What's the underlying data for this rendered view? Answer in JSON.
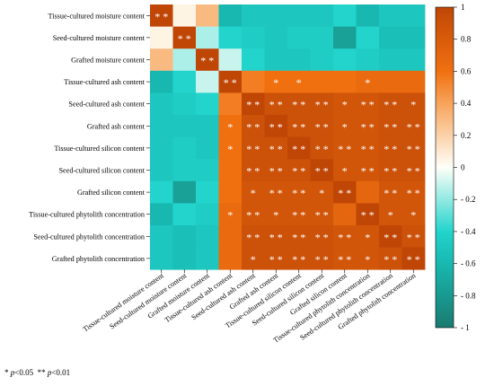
{
  "chart_data": {
    "type": "heatmap",
    "title": "",
    "labels": [
      "Tissue-cultured moisture content",
      "Seed-cultured moisture content",
      "Grafted moisture content",
      "Tissue-cultured ash content",
      "Seed-cultured ash content",
      "Grafted ash content",
      "Tissue-cultured silicon content",
      "Seed-cultured silicon content",
      "Grafted silicon content",
      "Tissue-cultured phytolith concentration",
      "Seed-cultured phytolith concentration",
      "Grafted phytolith concentration"
    ],
    "values": [
      [
        1.0,
        0.05,
        0.3,
        -0.6,
        -0.5,
        -0.5,
        -0.5,
        -0.5,
        -0.4,
        -0.6,
        -0.5,
        -0.5
      ],
      [
        0.05,
        1.0,
        -0.15,
        -0.4,
        -0.45,
        -0.5,
        -0.45,
        -0.45,
        -0.75,
        -0.4,
        -0.55,
        -0.55
      ],
      [
        0.3,
        -0.15,
        1.0,
        -0.1,
        -0.4,
        -0.5,
        -0.5,
        -0.45,
        -0.4,
        -0.45,
        -0.5,
        -0.5
      ],
      [
        -0.6,
        -0.4,
        -0.1,
        1.0,
        0.55,
        0.6,
        0.6,
        0.6,
        0.6,
        0.65,
        0.65,
        0.65
      ],
      [
        -0.5,
        -0.45,
        -0.4,
        0.55,
        1.0,
        0.9,
        0.9,
        0.9,
        0.85,
        0.85,
        0.9,
        0.9
      ],
      [
        -0.5,
        -0.5,
        -0.5,
        0.6,
        0.9,
        1.0,
        0.9,
        0.9,
        0.85,
        0.85,
        0.9,
        0.9
      ],
      [
        -0.5,
        -0.45,
        -0.5,
        0.6,
        0.9,
        0.9,
        1.0,
        0.9,
        0.85,
        0.85,
        0.9,
        0.9
      ],
      [
        -0.5,
        -0.45,
        -0.45,
        0.6,
        0.9,
        0.9,
        0.9,
        1.0,
        0.85,
        0.85,
        0.9,
        0.9
      ],
      [
        -0.4,
        -0.75,
        -0.4,
        0.6,
        0.85,
        0.85,
        0.85,
        0.85,
        1.0,
        0.7,
        0.85,
        0.85
      ],
      [
        -0.6,
        -0.4,
        -0.45,
        0.65,
        0.85,
        0.85,
        0.85,
        0.85,
        0.7,
        1.0,
        0.85,
        0.85
      ],
      [
        -0.5,
        -0.55,
        -0.5,
        0.65,
        0.9,
        0.9,
        0.9,
        0.9,
        0.85,
        0.85,
        1.0,
        0.9
      ],
      [
        -0.5,
        -0.55,
        -0.5,
        0.65,
        0.9,
        0.9,
        0.9,
        0.9,
        0.85,
        0.85,
        0.9,
        1.0
      ]
    ],
    "significance": [
      [
        "**",
        "",
        "",
        "",
        "",
        "",
        "",
        "",
        "",
        "",
        "",
        ""
      ],
      [
        "",
        "**",
        "",
        "",
        "",
        "",
        "",
        "",
        "",
        "",
        "",
        ""
      ],
      [
        "",
        "",
        "**",
        "",
        "",
        "",
        "",
        "",
        "",
        "",
        "",
        ""
      ],
      [
        "",
        "",
        "",
        "**",
        "",
        "*",
        "*",
        "",
        "",
        "*",
        "",
        ""
      ],
      [
        "",
        "",
        "",
        "",
        "**",
        "**",
        "**",
        "**",
        "*",
        "**",
        "**",
        "*"
      ],
      [
        "",
        "",
        "",
        "*",
        "**",
        "**",
        "**",
        "**",
        "*",
        "**",
        "**",
        "**"
      ],
      [
        "",
        "",
        "",
        "*",
        "**",
        "**",
        "**",
        "**",
        "**",
        "**",
        "**",
        "**"
      ],
      [
        "",
        "",
        "",
        "",
        "**",
        "**",
        "**",
        "**",
        "*",
        "**",
        "**",
        "**"
      ],
      [
        "",
        "",
        "",
        "",
        "*",
        "**",
        "**",
        "*",
        "**",
        "",
        "**",
        "**"
      ],
      [
        "",
        "",
        "",
        "*",
        "**",
        "*",
        "**",
        "**",
        "",
        "**",
        "*",
        "*"
      ],
      [
        "",
        "",
        "",
        "",
        "**",
        "**",
        "**",
        "**",
        "**",
        "*",
        "**",
        "**"
      ],
      [
        "",
        "",
        "",
        "",
        "*",
        "**",
        "**",
        "**",
        "**",
        "*",
        "**",
        "**"
      ]
    ],
    "colorbar": {
      "min": -1,
      "max": 1,
      "ticks": [
        1,
        0.8,
        0.6,
        0.4,
        0.2,
        0,
        -0.2,
        -0.4,
        -0.6,
        -0.8,
        -1
      ],
      "tick_labels": [
        "1",
        "0.8",
        "0.6",
        "0.4",
        "0.2",
        "0",
        "- 0.2",
        "- 0.4",
        "- 0.6",
        "- 0.8",
        "- 1"
      ],
      "colors": {
        "neg1": "#1a7a70",
        "neg06": "#18b8b0",
        "neg04": "#22d4cc",
        "zero": "#fffff8",
        "pos04": "#f7a35a",
        "pos06": "#f07010",
        "pos1": "#c04606"
      }
    },
    "grid": false,
    "legend": "right"
  },
  "footnote": {
    "star1": "*",
    "p1": "p",
    "t1": "<0.05",
    "star2": "**",
    "p2": "p",
    "t2": "<0.01"
  }
}
